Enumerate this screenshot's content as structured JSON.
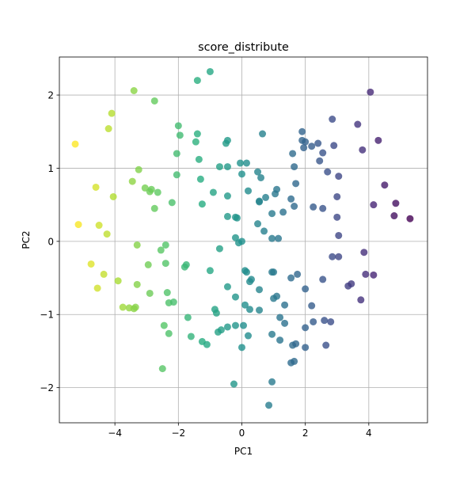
{
  "chart_data": {
    "type": "scatter",
    "title": "score_distribute",
    "xlabel": "PC1",
    "ylabel": "PC2",
    "xlim": [
      -5.75,
      5.85
    ],
    "ylim": [
      -2.48,
      2.52
    ],
    "xticks": [
      -4,
      -2,
      0,
      2,
      4
    ],
    "yticks": [
      -2,
      -1,
      0,
      1,
      2
    ],
    "xtick_labels": [
      "−4",
      "−2",
      "0",
      "2",
      "4"
    ],
    "ytick_labels": [
      "−2",
      "−1",
      "0",
      "1",
      "2"
    ],
    "grid": true,
    "colormap": "viridis (reversed along PC1)",
    "point_alpha": 0.8,
    "points": [
      [
        -3.4,
        2.06
      ],
      [
        -2.75,
        1.92
      ],
      [
        -1.4,
        2.2
      ],
      [
        -1.0,
        2.32
      ],
      [
        -4.1,
        1.75
      ],
      [
        -4.2,
        1.54
      ],
      [
        -5.25,
        1.33
      ],
      [
        -2.0,
        1.58
      ],
      [
        -1.95,
        1.45
      ],
      [
        -1.45,
        1.36
      ],
      [
        -1.4,
        1.47
      ],
      [
        -2.05,
        1.2
      ],
      [
        -1.3,
        0.85
      ],
      [
        -1.25,
        0.51
      ],
      [
        -2.05,
        0.91
      ],
      [
        -1.35,
        1.12
      ],
      [
        -0.7,
        1.02
      ],
      [
        -0.45,
        1.02
      ],
      [
        -0.5,
        1.34
      ],
      [
        -0.45,
        1.38
      ],
      [
        -3.25,
        0.98
      ],
      [
        -3.45,
        0.82
      ],
      [
        -3.05,
        0.73
      ],
      [
        -2.9,
        0.68
      ],
      [
        -2.85,
        0.71
      ],
      [
        -2.65,
        0.67
      ],
      [
        -2.75,
        0.45
      ],
      [
        -2.2,
        0.53
      ],
      [
        -4.6,
        0.74
      ],
      [
        -4.05,
        0.61
      ],
      [
        -5.15,
        0.23
      ],
      [
        -4.5,
        0.22
      ],
      [
        -4.25,
        0.1
      ],
      [
        -3.3,
        -0.05
      ],
      [
        -2.4,
        -0.05
      ],
      [
        -2.55,
        -0.12
      ],
      [
        -2.4,
        -0.3
      ],
      [
        -1.75,
        -0.32
      ],
      [
        -1.8,
        -0.35
      ],
      [
        -0.9,
        0.67
      ],
      [
        -0.45,
        0.62
      ],
      [
        -0.45,
        0.34
      ],
      [
        -0.15,
        0.32
      ],
      [
        -0.7,
        -0.1
      ],
      [
        -1.0,
        -0.4
      ],
      [
        -0.2,
        0.05
      ],
      [
        -0.1,
        -0.02
      ],
      [
        0.1,
        -0.4
      ],
      [
        0.15,
        -0.42
      ],
      [
        -4.75,
        -0.31
      ],
      [
        -4.35,
        -0.45
      ],
      [
        -4.55,
        -0.64
      ],
      [
        -3.9,
        -0.54
      ],
      [
        -3.3,
        -0.59
      ],
      [
        -2.95,
        -0.32
      ],
      [
        -2.9,
        -0.71
      ],
      [
        -2.35,
        -0.7
      ],
      [
        -2.3,
        -0.84
      ],
      [
        -2.15,
        -0.83
      ],
      [
        -3.75,
        -0.9
      ],
      [
        -3.55,
        -0.91
      ],
      [
        -3.4,
        -0.92
      ],
      [
        -3.35,
        -0.9
      ],
      [
        -1.7,
        -1.04
      ],
      [
        -2.45,
        -1.15
      ],
      [
        -2.3,
        -1.26
      ],
      [
        -1.6,
        -1.3
      ],
      [
        -1.25,
        -1.37
      ],
      [
        -1.1,
        -1.41
      ],
      [
        -2.5,
        -1.74
      ],
      [
        -0.85,
        -0.93
      ],
      [
        -0.8,
        -0.98
      ],
      [
        -0.75,
        -1.24
      ],
      [
        -0.65,
        -1.21
      ],
      [
        -0.45,
        -1.17
      ],
      [
        -0.2,
        -1.15
      ],
      [
        -0.2,
        -0.76
      ],
      [
        0.1,
        -0.87
      ],
      [
        0.25,
        -0.93
      ],
      [
        0.55,
        -0.94
      ],
      [
        0.05,
        -1.15
      ],
      [
        0.2,
        -1.29
      ],
      [
        0.0,
        -1.45
      ],
      [
        -0.25,
        -1.95
      ],
      [
        0.85,
        -2.24
      ],
      [
        0.95,
        -1.92
      ],
      [
        0.95,
        -1.27
      ],
      [
        1.2,
        -1.35
      ],
      [
        1.35,
        -1.12
      ],
      [
        1.6,
        -1.42
      ],
      [
        1.7,
        -1.4
      ],
      [
        1.55,
        -1.66
      ],
      [
        1.65,
        -1.64
      ],
      [
        1.2,
        -1.04
      ],
      [
        1.35,
        -0.87
      ],
      [
        1.0,
        -0.78
      ],
      [
        1.1,
        -0.75
      ],
      [
        1.0,
        -0.42
      ],
      [
        2.0,
        -0.65
      ],
      [
        2.55,
        -0.52
      ],
      [
        2.2,
        -0.88
      ],
      [
        2.0,
        -1.18
      ],
      [
        2.25,
        -1.1
      ],
      [
        2.6,
        -1.08
      ],
      [
        2.8,
        -1.1
      ],
      [
        2.65,
        -1.42
      ],
      [
        2.0,
        -1.45
      ],
      [
        3.35,
        -0.61
      ],
      [
        3.45,
        -0.58
      ],
      [
        3.9,
        -0.45
      ],
      [
        4.15,
        -0.46
      ],
      [
        3.75,
        -0.8
      ],
      [
        3.85,
        -0.15
      ],
      [
        2.85,
        -0.21
      ],
      [
        3.05,
        -0.21
      ],
      [
        3.05,
        0.08
      ],
      [
        3.0,
        0.33
      ],
      [
        3.0,
        0.61
      ],
      [
        2.55,
        0.45
      ],
      [
        2.25,
        0.47
      ],
      [
        3.05,
        0.89
      ],
      [
        2.7,
        0.95
      ],
      [
        2.45,
        1.1
      ],
      [
        2.55,
        1.21
      ],
      [
        2.4,
        1.34
      ],
      [
        2.2,
        1.3
      ],
      [
        2.0,
        1.36
      ],
      [
        1.9,
        1.38
      ],
      [
        1.9,
        1.5
      ],
      [
        1.95,
        1.28
      ],
      [
        2.85,
        1.67
      ],
      [
        2.9,
        1.31
      ],
      [
        3.65,
        1.6
      ],
      [
        3.8,
        1.25
      ],
      [
        4.05,
        2.04
      ],
      [
        4.3,
        1.38
      ],
      [
        4.15,
        0.5
      ],
      [
        4.5,
        0.77
      ],
      [
        4.85,
        0.52
      ],
      [
        4.8,
        0.35
      ],
      [
        5.3,
        0.31
      ],
      [
        1.6,
        1.2
      ],
      [
        1.65,
        1.02
      ],
      [
        1.7,
        0.79
      ],
      [
        1.55,
        0.58
      ],
      [
        1.65,
        0.48
      ],
      [
        1.3,
        0.4
      ],
      [
        0.95,
        0.38
      ],
      [
        0.55,
        0.54
      ],
      [
        0.55,
        0.55
      ],
      [
        0.6,
        0.87
      ],
      [
        0.5,
        0.95
      ],
      [
        0.65,
        1.47
      ],
      [
        0.15,
        1.07
      ],
      [
        -0.05,
        1.07
      ],
      [
        0.0,
        0.92
      ],
      [
        0.2,
        0.69
      ],
      [
        0.75,
        0.6
      ],
      [
        1.05,
        0.65
      ],
      [
        1.1,
        0.71
      ],
      [
        0.5,
        0.24
      ],
      [
        0.7,
        0.14
      ],
      [
        0.95,
        0.04
      ],
      [
        1.15,
        0.04
      ],
      [
        0.95,
        -0.42
      ],
      [
        -0.2,
        0.33
      ],
      [
        0.3,
        -0.52
      ],
      [
        0.25,
        -0.55
      ],
      [
        -0.45,
        -0.62
      ],
      [
        0.55,
        -0.66
      ],
      [
        1.55,
        -0.5
      ],
      [
        1.75,
        -0.45
      ],
      [
        0.0,
        0.0
      ]
    ]
  }
}
